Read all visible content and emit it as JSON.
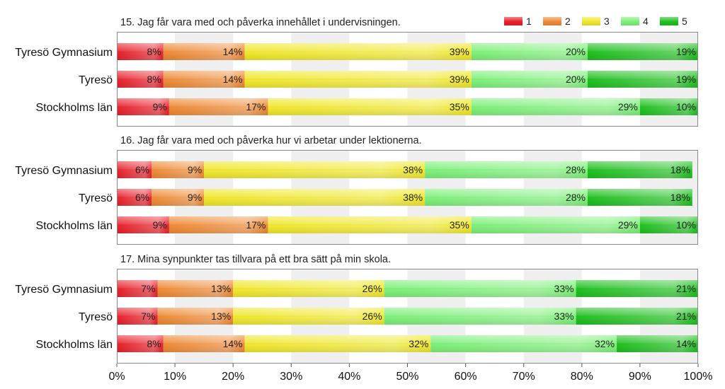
{
  "chart_data": {
    "type": "bar",
    "orientation": "horizontal",
    "stacked": true,
    "xlim": [
      0,
      100
    ],
    "x_ticks": [
      "0%",
      "10%",
      "20%",
      "30%",
      "40%",
      "50%",
      "60%",
      "70%",
      "80%",
      "90%",
      "100%"
    ],
    "grid": true,
    "legend": {
      "placement": "top-right",
      "entries": [
        {
          "name": "1",
          "color": "#e8202a"
        },
        {
          "name": "2",
          "color": "#ee8a35"
        },
        {
          "name": "3",
          "color": "#f0e82e"
        },
        {
          "name": "4",
          "color": "#7ef07a"
        },
        {
          "name": "5",
          "color": "#20c020"
        }
      ]
    },
    "panels": [
      {
        "title": "15. Jag får vara med och påverka innehållet i undervisningen.",
        "categories": [
          "Tyresö Gymnasium",
          "Tyresö",
          "Stockholms län"
        ],
        "rows": [
          {
            "values": [
              8,
              14,
              39,
              20,
              19
            ],
            "labels": [
              "8%",
              "14%",
              "39%",
              "20%",
              "19%"
            ]
          },
          {
            "values": [
              8,
              14,
              39,
              20,
              19
            ],
            "labels": [
              "8%",
              "14%",
              "39%",
              "20%",
              "19%"
            ]
          },
          {
            "values": [
              9,
              17,
              35,
              29,
              10
            ],
            "labels": [
              "9%",
              "17%",
              "35%",
              "29%",
              "10%"
            ]
          }
        ]
      },
      {
        "title": "16. Jag får vara med och påverka hur vi arbetar under lektionerna.",
        "categories": [
          "Tyresö Gymnasium",
          "Tyresö",
          "Stockholms län"
        ],
        "rows": [
          {
            "values": [
              6,
              9,
              38,
              28,
              18
            ],
            "labels": [
              "6%",
              "9%",
              "38%",
              "28%",
              "18%"
            ]
          },
          {
            "values": [
              6,
              9,
              38,
              28,
              18
            ],
            "labels": [
              "6%",
              "9%",
              "38%",
              "28%",
              "18%"
            ]
          },
          {
            "values": [
              9,
              17,
              35,
              29,
              10
            ],
            "labels": [
              "9%",
              "17%",
              "35%",
              "29%",
              "10%"
            ]
          }
        ]
      },
      {
        "title": "17. Mina synpunkter tas tillvara på ett bra sätt på min skola.",
        "categories": [
          "Tyresö Gymnasium",
          "Tyresö",
          "Stockholms län"
        ],
        "rows": [
          {
            "values": [
              7,
              13,
              26,
              33,
              21
            ],
            "labels": [
              "7%",
              "13%",
              "26%",
              "33%",
              "21%"
            ]
          },
          {
            "values": [
              7,
              13,
              26,
              33,
              21
            ],
            "labels": [
              "7%",
              "13%",
              "26%",
              "33%",
              "21%"
            ]
          },
          {
            "values": [
              8,
              14,
              32,
              32,
              14
            ],
            "labels": [
              "8%",
              "14%",
              "32%",
              "32%",
              "14%"
            ]
          }
        ]
      }
    ]
  }
}
